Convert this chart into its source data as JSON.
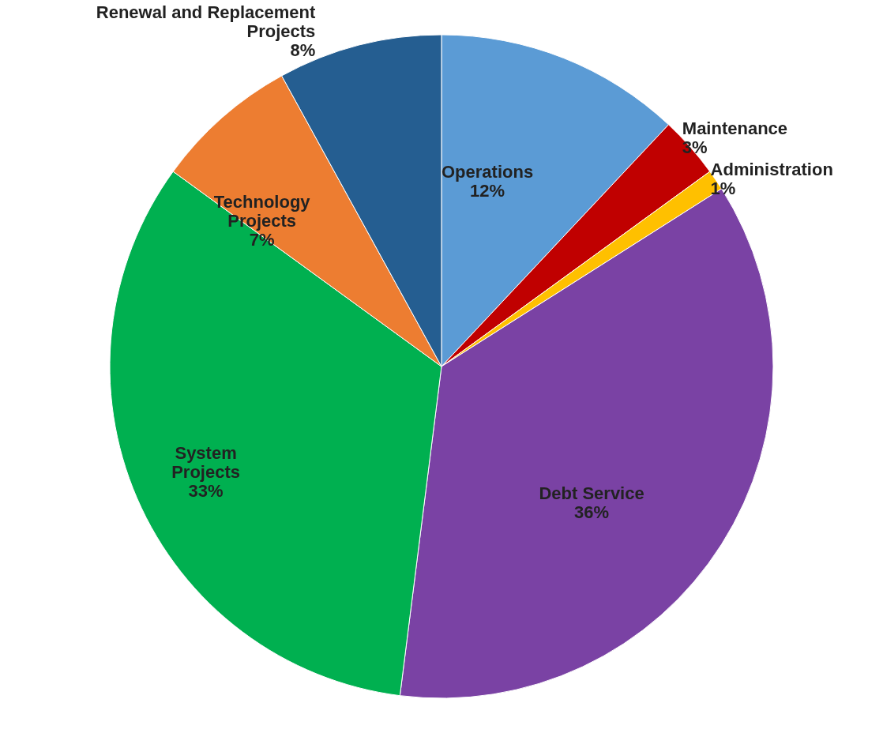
{
  "chart_data": {
    "type": "pie",
    "categories": [
      "Operations",
      "Maintenance",
      "Administration",
      "Debt Service",
      "System Projects",
      "Technology Projects",
      "Renewal and Replacement Projects"
    ],
    "values": [
      12,
      3,
      1,
      36,
      33,
      7,
      8
    ],
    "value_labels": [
      "12%",
      "3%",
      "1%",
      "36%",
      "33%",
      "7%",
      "8%"
    ],
    "colors": [
      "#5b9bd5",
      "#c00000",
      "#ffc000",
      "#7a42a4",
      "#00b050",
      "#ed7d31",
      "#255e91"
    ]
  }
}
